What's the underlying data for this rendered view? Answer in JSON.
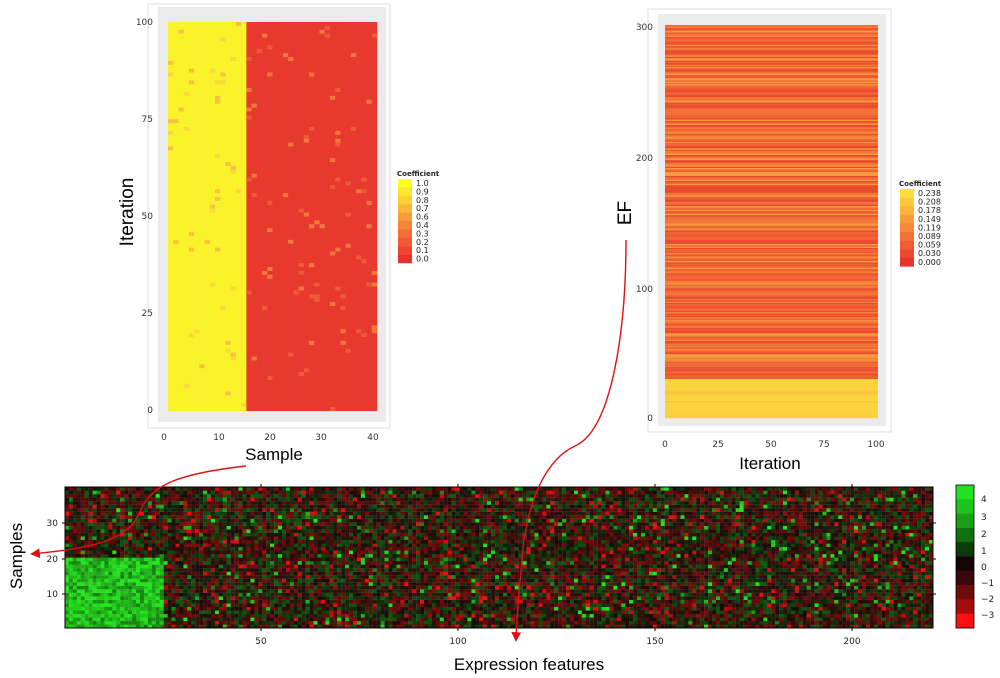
{
  "chart_data": [
    {
      "type": "heatmap",
      "id": "sample_iteration",
      "xlabel": "Sample",
      "ylabel": "Iteration",
      "xlim": [
        0,
        40
      ],
      "ylim": [
        0,
        100
      ],
      "xticks": [
        "0",
        "10",
        "20",
        "30",
        "40"
      ],
      "yticks": [
        "0",
        "25",
        "50",
        "75",
        "100"
      ],
      "columns": 40,
      "rows": 100,
      "high_block_samples": [
        1,
        15
      ],
      "high_value": 1.0,
      "low_value": 0.0,
      "legend": {
        "title": "Coefficient",
        "labels": [
          "1.0",
          "0.9",
          "0.8",
          "0.7",
          "0.6",
          "0.4",
          "0.3",
          "0.2",
          "0.1",
          "0.0"
        ],
        "colors": [
          "#ffff20",
          "#fde72a",
          "#fcd032",
          "#fbb637",
          "#f99c39",
          "#f6843a",
          "#f36d38",
          "#f05a34",
          "#ec4630",
          "#e8332c"
        ]
      }
    },
    {
      "type": "heatmap",
      "id": "ef_iteration",
      "xlabel": "Iteration",
      "ylabel": "EF",
      "xlim": [
        0,
        100
      ],
      "ylim": [
        0,
        300
      ],
      "xticks": [
        "0",
        "25",
        "50",
        "75",
        "100"
      ],
      "yticks": [
        "0",
        "100",
        "200",
        "300"
      ],
      "columns": 100,
      "rows": 300,
      "high_block_ef": [
        1,
        30
      ],
      "legend": {
        "title": "Coefficient",
        "labels": [
          "0.238",
          "0.208",
          "0.178",
          "0.149",
          "0.119",
          "0.089",
          "0.059",
          "0.030",
          "0.000"
        ],
        "colors": [
          "#ffde3a",
          "#fdc93a",
          "#fbb33a",
          "#f99d39",
          "#f68839",
          "#f37237",
          "#f05d33",
          "#ed4830",
          "#e8332c"
        ]
      }
    },
    {
      "type": "heatmap",
      "id": "samples_expression",
      "xlabel": "Expression features",
      "ylabel": "Samples",
      "xlim": [
        0,
        220
      ],
      "ylim": [
        0,
        40
      ],
      "xticks": [
        "50",
        "100",
        "150",
        "200"
      ],
      "yticks": [
        "10",
        "20",
        "30"
      ],
      "columns": 220,
      "rows": 40,
      "high_block_features": [
        1,
        25
      ],
      "high_block_samples": [
        1,
        20
      ],
      "legend": {
        "labels": [
          "4",
          "3",
          "2",
          "1",
          "0",
          "−1",
          "−2",
          "−3"
        ],
        "colors": [
          "#22e022",
          "#1cc41c",
          "#16a016",
          "#107010",
          "#0b3a0b",
          "#140606",
          "#3a0808",
          "#6e0b0b",
          "#a60c0c",
          "#ff1010"
        ]
      }
    }
  ]
}
